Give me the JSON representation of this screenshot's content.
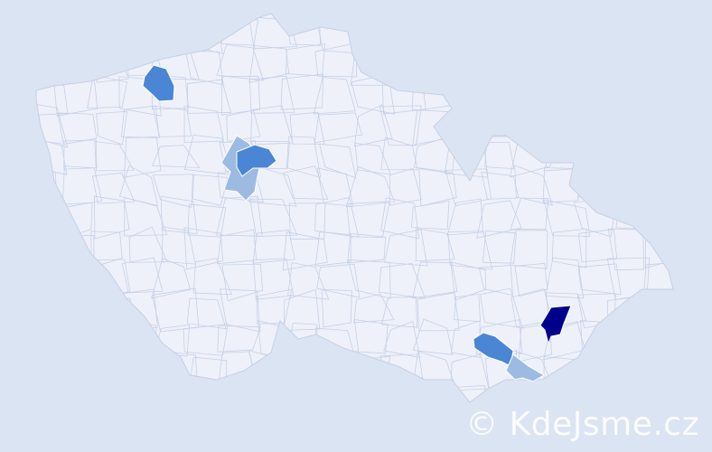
{
  "map": {
    "background_color": "#dbe4f2",
    "region_fill": "#eef1f9",
    "region_border": "#c6d0e6",
    "highlight_colors": {
      "light": "#9dbbe2",
      "medium": "#4a86d4",
      "dark": "#00008b"
    }
  },
  "watermark": {
    "text": "© KdeJsme.cz"
  }
}
